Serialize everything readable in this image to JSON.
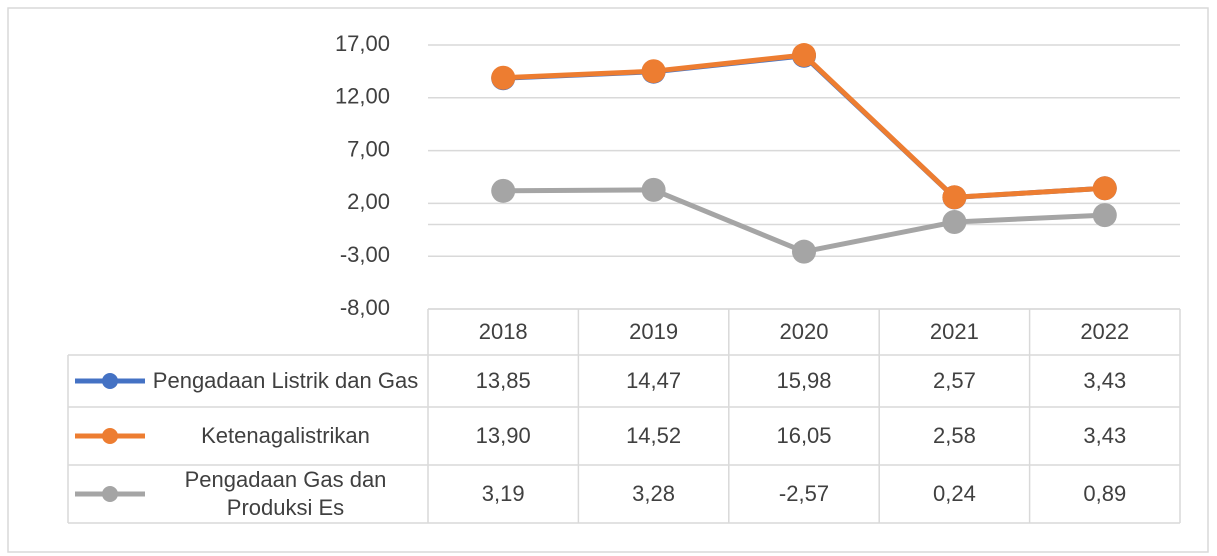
{
  "chart_data": {
    "type": "line",
    "categories": [
      "2018",
      "2019",
      "2020",
      "2021",
      "2022"
    ],
    "series": [
      {
        "name": "Pengadaan Listrik dan Gas",
        "color": "#4472c4",
        "values": [
          13.85,
          14.47,
          15.98,
          2.57,
          3.43
        ],
        "value_labels": [
          "13,85",
          "14,47",
          "15,98",
          "2,57",
          "3,43"
        ]
      },
      {
        "name": "Ketenagalistrikan",
        "color": "#ed7d31",
        "values": [
          13.9,
          14.52,
          16.05,
          2.58,
          3.43
        ],
        "value_labels": [
          "13,90",
          "14,52",
          "16,05",
          "2,58",
          "3,43"
        ]
      },
      {
        "name": "Pengadaan Gas dan Produksi Es",
        "color": "#a5a5a5",
        "values": [
          3.19,
          3.28,
          -2.57,
          0.24,
          0.89
        ],
        "value_labels": [
          "3,19",
          "3,28",
          "-2,57",
          "0,24",
          "0,89"
        ]
      }
    ],
    "ylim": [
      -8,
      17
    ],
    "yticks": [
      {
        "value": -8,
        "label": "-8,00"
      },
      {
        "value": -3,
        "label": "-3,00"
      },
      {
        "value": 2,
        "label": "2,00"
      },
      {
        "value": 7,
        "label": "7,00"
      },
      {
        "value": 12,
        "label": "12,00"
      },
      {
        "value": 17,
        "label": "17,00"
      }
    ],
    "grid": true
  }
}
